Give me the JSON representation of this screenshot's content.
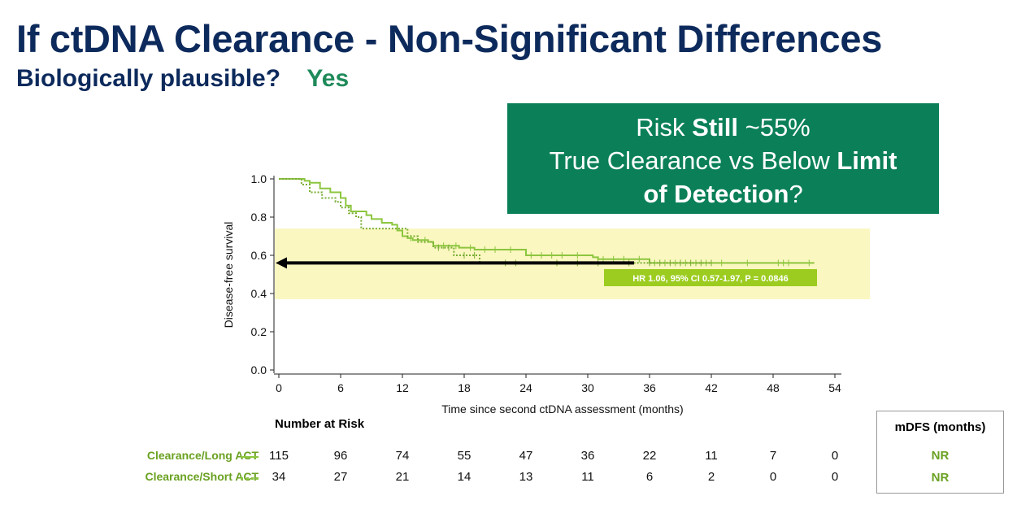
{
  "slide": {
    "title": "If ctDNA Clearance - Non-Significant Differences",
    "subtitle_question": "Biologically plausible?",
    "subtitle_answer": "Yes",
    "callout": {
      "line1_a": "Risk ",
      "line1_b": "Still",
      "line1_c": " ~55%",
      "line2_a": "True Clearance vs Below ",
      "line2_b": "Limit",
      "line3_a": "of Detection",
      "line3_b": "?"
    }
  },
  "colors": {
    "title": "#0d2a5c",
    "answer": "#1f8a5a",
    "callout_bg": "#0b8058",
    "series_green": "#8cc63f",
    "label_green": "#6aa121",
    "highlight_band": "#fbf7c0"
  },
  "chart_data": {
    "type": "line",
    "subtype": "kaplan-meier",
    "xlabel": "Time since second ctDNA assessment (months)",
    "ylabel": "Disease-free survival",
    "xlim": [
      0,
      54
    ],
    "ylim": [
      0,
      1.0
    ],
    "xticks": [
      0,
      6,
      12,
      18,
      24,
      30,
      36,
      42,
      48,
      54
    ],
    "yticks": [
      "0.0",
      "0.2",
      "0.4",
      "0.6",
      "0.8",
      "1.0"
    ],
    "highlight_band": [
      0.37,
      0.74
    ],
    "reference_arrow": {
      "from_x": 34.5,
      "to_x": 0,
      "y": 0.56
    },
    "annotation": "HR 1.06, 95% CI 0.57-1.97, P = 0.0846",
    "series": [
      {
        "name": "Clearance/Long ACT",
        "style": "solid",
        "x": [
          0,
          2.5,
          3.0,
          4.0,
          5.0,
          6.0,
          6.5,
          7.0,
          8.5,
          9.0,
          10.0,
          11.0,
          11.5,
          12.0,
          12.5,
          13.0,
          14.5,
          15.0,
          17.5,
          19.0,
          24.0,
          30.5,
          31.0,
          36.0,
          52.0
        ],
        "y": [
          1.0,
          0.99,
          0.98,
          0.95,
          0.93,
          0.9,
          0.86,
          0.83,
          0.81,
          0.79,
          0.77,
          0.76,
          0.73,
          0.7,
          0.69,
          0.68,
          0.67,
          0.65,
          0.64,
          0.63,
          0.6,
          0.59,
          0.58,
          0.56,
          0.56
        ],
        "censor_x": [
          12.8,
          14.2,
          16.0,
          17.2,
          18.6,
          20.0,
          21.0,
          22.5,
          24.5,
          25.5,
          26.5,
          27.5,
          29.0,
          31.5,
          32.5,
          33.5,
          35.0,
          36.5,
          37.5,
          38.5,
          39.5,
          40.5,
          41.5,
          43.0,
          45.5,
          48.5,
          49.0,
          49.5,
          51.5
        ]
      },
      {
        "name": "Clearance/Short ACT",
        "style": "dotted",
        "x": [
          0,
          2.2,
          3.0,
          4.2,
          5.5,
          6.0,
          6.8,
          7.5,
          8.0,
          12.0,
          12.5,
          13.5,
          15.0,
          17.0,
          19.5
        ],
        "y": [
          1.0,
          0.97,
          0.93,
          0.9,
          0.88,
          0.85,
          0.82,
          0.8,
          0.74,
          0.74,
          0.7,
          0.67,
          0.64,
          0.6,
          0.56
        ],
        "censor_x": [
          15.5,
          16.5,
          18.0,
          19.0,
          22.0,
          23.0,
          27.0,
          29.0,
          31.0,
          34.0,
          36.0,
          37.0,
          38.0,
          39.0,
          40.0,
          41.0,
          42.0
        ]
      }
    ]
  },
  "risk_table": {
    "title": "Number at Risk",
    "times": [
      0,
      6,
      12,
      18,
      24,
      30,
      36,
      42,
      48,
      54
    ],
    "rows": [
      {
        "label": "Clearance/Long ACT",
        "counts": [
          "115",
          "96",
          "74",
          "55",
          "47",
          "36",
          "22",
          "11",
          "7",
          "0"
        ]
      },
      {
        "label": "Clearance/Short ACT",
        "counts": [
          "34",
          "27",
          "21",
          "14",
          "13",
          "11",
          "6",
          "2",
          "0",
          "0"
        ]
      }
    ]
  },
  "mdfs": {
    "header": "mDFS (months)",
    "values": [
      "NR",
      "NR"
    ]
  }
}
